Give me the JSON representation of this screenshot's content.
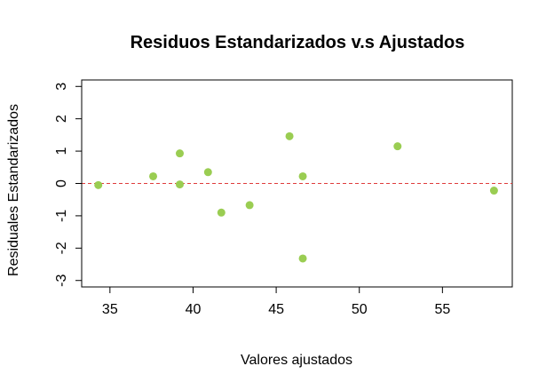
{
  "chart_data": {
    "type": "scatter",
    "title": "Residuos Estandarizados v.s Ajustados",
    "xlabel": "Valores ajustados",
    "ylabel": "Residuales Estandarizados",
    "xlim": [
      33.3,
      59.2
    ],
    "ylim": [
      -3.2,
      3.2
    ],
    "xticks": [
      35,
      40,
      45,
      50,
      55
    ],
    "yticks": [
      -3,
      -2,
      -1,
      0,
      1,
      2,
      3
    ],
    "grid": false,
    "reference_line": {
      "y": 0,
      "color": "#e03c3c",
      "style": "dashed"
    },
    "point_color": "#9acd52",
    "points": [
      {
        "x": 34.3,
        "y": -0.05
      },
      {
        "x": 37.6,
        "y": 0.22
      },
      {
        "x": 39.2,
        "y": 0.93
      },
      {
        "x": 39.2,
        "y": -0.03
      },
      {
        "x": 40.9,
        "y": 0.35
      },
      {
        "x": 41.7,
        "y": -0.9
      },
      {
        "x": 43.4,
        "y": -0.67
      },
      {
        "x": 45.8,
        "y": 1.46
      },
      {
        "x": 46.6,
        "y": 0.22
      },
      {
        "x": 46.6,
        "y": -2.32
      },
      {
        "x": 52.3,
        "y": 1.15
      },
      {
        "x": 58.1,
        "y": -0.22
      }
    ]
  }
}
